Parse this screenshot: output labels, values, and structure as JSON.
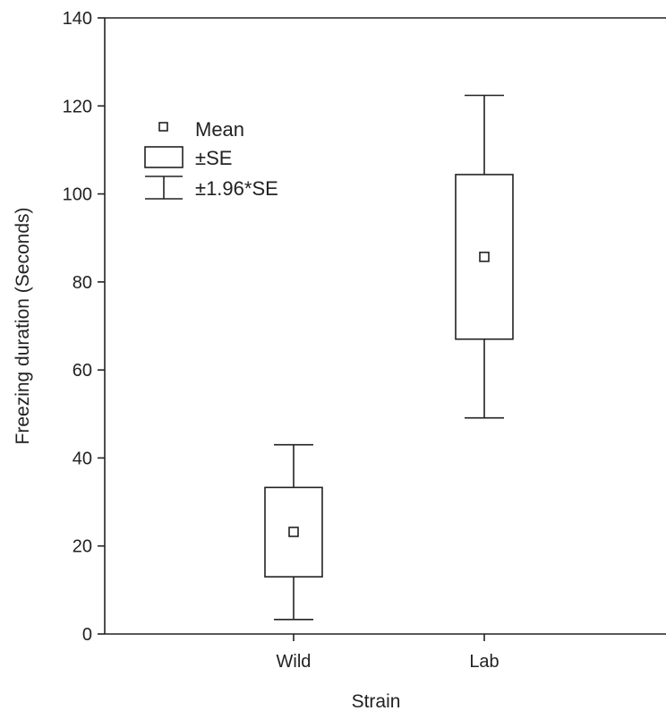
{
  "chart_data": {
    "type": "box",
    "title": "",
    "xlabel": "Strain",
    "ylabel": "Freezing duration (Seconds)",
    "ylim": [
      0,
      140
    ],
    "yticks": [
      0,
      20,
      40,
      60,
      80,
      100,
      120,
      140
    ],
    "categories": [
      "Wild",
      "Lab"
    ],
    "series": [
      {
        "category": "Wild",
        "mean": 23.2,
        "se_low": 13.0,
        "se_high": 33.3,
        "ci_low": 3.3,
        "ci_high": 43.0
      },
      {
        "category": "Lab",
        "mean": 85.7,
        "se_low": 67.0,
        "se_high": 104.4,
        "ci_low": 49.1,
        "ci_high": 122.4
      }
    ],
    "legend": {
      "position": "top-left",
      "items": [
        {
          "symbol": "square",
          "label": "Mean"
        },
        {
          "symbol": "box",
          "label": "±SE"
        },
        {
          "symbol": "whisker",
          "label": "±1.96*SE"
        }
      ]
    },
    "grid": false
  }
}
